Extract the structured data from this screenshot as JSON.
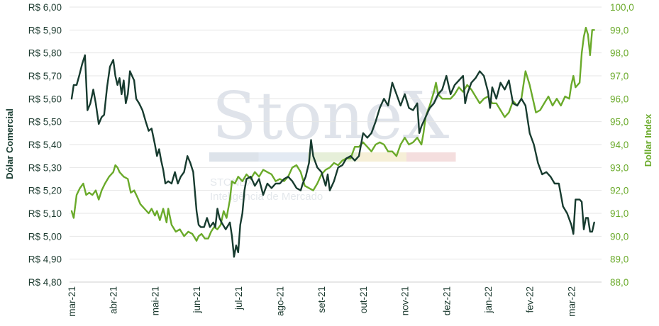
{
  "chart_data": {
    "type": "line",
    "watermark": {
      "brand": "StoneX",
      "line1": "STONEX",
      "line2": "Inteligência de Mercado",
      "band_colors": [
        "#dde3ea",
        "#e3eaf3",
        "#e6efd9",
        "#f6efd7",
        "#f4dede"
      ]
    },
    "colors": {
      "left": "#173b2f",
      "right": "#6aaa2a",
      "grid": "#e6e6e6"
    },
    "x_tick_labels": [
      "mar-21",
      "abr-21",
      "mai-21",
      "jun-21",
      "jul-21",
      "ago-21",
      "set-21",
      "out-21",
      "nov-21",
      "dez-21",
      "jan-22",
      "fev-22",
      "mar-22"
    ],
    "y_left": {
      "label": "Dólar Comercial",
      "range": [
        4.8,
        6.0
      ],
      "tick_labels": [
        "R$ 4,80",
        "R$ 4,90",
        "R$ 5,00",
        "R$ 5,10",
        "R$ 5,20",
        "R$ 5,30",
        "R$ 5,40",
        "R$ 5,50",
        "R$ 5,60",
        "R$ 5,70",
        "R$ 5,80",
        "R$ 5,90",
        "R$ 6,00"
      ]
    },
    "y_right": {
      "label": "Dollar Index",
      "range": [
        88.0,
        100.0
      ],
      "tick_labels": [
        "88,0",
        "89,0",
        "90,0",
        "91,0",
        "92,0",
        "93,0",
        "94,0",
        "95,0",
        "96,0",
        "97,0",
        "98,0",
        "99,0",
        "100,0"
      ]
    },
    "x_range": [
      0,
      12.4
    ],
    "series": [
      {
        "name": "Dólar Comercial",
        "axis": "left",
        "points": [
          [
            0.0,
            5.6
          ],
          [
            0.05,
            5.66
          ],
          [
            0.12,
            5.66
          ],
          [
            0.18,
            5.7
          ],
          [
            0.25,
            5.75
          ],
          [
            0.32,
            5.79
          ],
          [
            0.38,
            5.55
          ],
          [
            0.45,
            5.58
          ],
          [
            0.52,
            5.64
          ],
          [
            0.58,
            5.58
          ],
          [
            0.65,
            5.49
          ],
          [
            0.72,
            5.52
          ],
          [
            0.78,
            5.53
          ],
          [
            0.85,
            5.65
          ],
          [
            0.92,
            5.74
          ],
          [
            1.0,
            5.77
          ],
          [
            1.05,
            5.7
          ],
          [
            1.1,
            5.66
          ],
          [
            1.15,
            5.69
          ],
          [
            1.2,
            5.62
          ],
          [
            1.25,
            5.68
          ],
          [
            1.3,
            5.58
          ],
          [
            1.35,
            5.62
          ],
          [
            1.4,
            5.72
          ],
          [
            1.45,
            5.7
          ],
          [
            1.5,
            5.68
          ],
          [
            1.55,
            5.6
          ],
          [
            1.62,
            5.58
          ],
          [
            1.7,
            5.55
          ],
          [
            1.78,
            5.5
          ],
          [
            1.85,
            5.46
          ],
          [
            1.92,
            5.47
          ],
          [
            2.0,
            5.4
          ],
          [
            2.05,
            5.35
          ],
          [
            2.1,
            5.38
          ],
          [
            2.15,
            5.33
          ],
          [
            2.2,
            5.29
          ],
          [
            2.25,
            5.23
          ],
          [
            2.32,
            5.24
          ],
          [
            2.4,
            5.23
          ],
          [
            2.48,
            5.28
          ],
          [
            2.55,
            5.23
          ],
          [
            2.62,
            5.26
          ],
          [
            2.7,
            5.28
          ],
          [
            2.78,
            5.35
          ],
          [
            2.85,
            5.32
          ],
          [
            2.92,
            5.28
          ],
          [
            3.0,
            5.11
          ],
          [
            3.05,
            5.05
          ],
          [
            3.1,
            5.04
          ],
          [
            3.18,
            5.04
          ],
          [
            3.25,
            5.08
          ],
          [
            3.32,
            5.04
          ],
          [
            3.4,
            5.06
          ],
          [
            3.45,
            5.04
          ],
          [
            3.5,
            5.12
          ],
          [
            3.55,
            5.08
          ],
          [
            3.6,
            5.06
          ],
          [
            3.7,
            5.03
          ],
          [
            3.8,
            5.06
          ],
          [
            3.85,
            5.0
          ],
          [
            3.9,
            4.91
          ],
          [
            3.95,
            4.96
          ],
          [
            4.0,
            4.93
          ],
          [
            4.05,
            5.05
          ],
          [
            4.1,
            5.1
          ],
          [
            4.15,
            5.2
          ],
          [
            4.2,
            5.25
          ],
          [
            4.3,
            5.26
          ],
          [
            4.4,
            5.22
          ],
          [
            4.5,
            5.25
          ],
          [
            4.6,
            5.18
          ],
          [
            4.7,
            5.23
          ],
          [
            4.8,
            5.21
          ],
          [
            4.9,
            5.23
          ],
          [
            5.0,
            5.23
          ],
          [
            5.1,
            5.25
          ],
          [
            5.2,
            5.26
          ],
          [
            5.3,
            5.24
          ],
          [
            5.4,
            5.21
          ],
          [
            5.5,
            5.2
          ],
          [
            5.55,
            5.23
          ],
          [
            5.62,
            5.26
          ],
          [
            5.7,
            5.32
          ],
          [
            5.75,
            5.42
          ],
          [
            5.8,
            5.35
          ],
          [
            5.9,
            5.3
          ],
          [
            6.0,
            5.28
          ],
          [
            6.1,
            5.22
          ],
          [
            6.15,
            5.27
          ],
          [
            6.2,
            5.2
          ],
          [
            6.3,
            5.24
          ],
          [
            6.4,
            5.3
          ],
          [
            6.5,
            5.31
          ],
          [
            6.6,
            5.34
          ],
          [
            6.7,
            5.35
          ],
          [
            6.8,
            5.33
          ],
          [
            6.9,
            5.35
          ],
          [
            7.0,
            5.45
          ],
          [
            7.1,
            5.43
          ],
          [
            7.2,
            5.45
          ],
          [
            7.3,
            5.5
          ],
          [
            7.4,
            5.56
          ],
          [
            7.5,
            5.6
          ],
          [
            7.6,
            5.57
          ],
          [
            7.7,
            5.67
          ],
          [
            7.8,
            5.62
          ],
          [
            7.9,
            5.57
          ],
          [
            8.0,
            5.62
          ],
          [
            8.1,
            5.56
          ],
          [
            8.2,
            5.55
          ],
          [
            8.3,
            5.58
          ],
          [
            8.35,
            5.45
          ],
          [
            8.4,
            5.48
          ],
          [
            8.5,
            5.52
          ],
          [
            8.6,
            5.56
          ],
          [
            8.7,
            5.58
          ],
          [
            8.8,
            5.62
          ],
          [
            8.9,
            5.64
          ],
          [
            9.0,
            5.7
          ],
          [
            9.1,
            5.62
          ],
          [
            9.2,
            5.66
          ],
          [
            9.3,
            5.68
          ],
          [
            9.4,
            5.7
          ],
          [
            9.45,
            5.58
          ],
          [
            9.5,
            5.62
          ],
          [
            9.6,
            5.67
          ],
          [
            9.7,
            5.69
          ],
          [
            9.8,
            5.72
          ],
          [
            9.9,
            5.7
          ],
          [
            10.0,
            5.63
          ],
          [
            10.05,
            5.56
          ],
          [
            10.1,
            5.65
          ],
          [
            10.2,
            5.6
          ],
          [
            10.3,
            5.67
          ],
          [
            10.4,
            5.64
          ],
          [
            10.5,
            5.68
          ],
          [
            10.6,
            5.58
          ],
          [
            10.7,
            5.57
          ],
          [
            10.8,
            5.6
          ],
          [
            10.9,
            5.57
          ],
          [
            11.0,
            5.45
          ],
          [
            11.1,
            5.4
          ],
          [
            11.2,
            5.32
          ],
          [
            11.3,
            5.27
          ],
          [
            11.4,
            5.28
          ],
          [
            11.5,
            5.26
          ],
          [
            11.6,
            5.23
          ],
          [
            11.7,
            5.23
          ],
          [
            11.8,
            5.13
          ],
          [
            11.9,
            5.1
          ],
          [
            12.0,
            5.05
          ],
          [
            12.05,
            5.01
          ],
          [
            12.1,
            5.16
          ],
          [
            12.2,
            5.16
          ],
          [
            12.25,
            5.15
          ],
          [
            12.3,
            5.03
          ],
          [
            12.35,
            5.08
          ],
          [
            12.4,
            5.08
          ],
          [
            12.45,
            5.02
          ],
          [
            12.5,
            5.02
          ],
          [
            12.55,
            5.06
          ]
        ]
      },
      {
        "name": "Dollar Index",
        "axis": "right",
        "points": [
          [
            0.0,
            91.1
          ],
          [
            0.05,
            90.8
          ],
          [
            0.12,
            91.8
          ],
          [
            0.2,
            92.1
          ],
          [
            0.28,
            92.3
          ],
          [
            0.35,
            91.8
          ],
          [
            0.42,
            91.9
          ],
          [
            0.5,
            91.8
          ],
          [
            0.58,
            92.0
          ],
          [
            0.65,
            91.6
          ],
          [
            0.72,
            92.0
          ],
          [
            0.8,
            92.3
          ],
          [
            0.9,
            92.6
          ],
          [
            1.0,
            92.8
          ],
          [
            1.05,
            93.1
          ],
          [
            1.1,
            93.0
          ],
          [
            1.15,
            92.8
          ],
          [
            1.25,
            92.6
          ],
          [
            1.35,
            92.5
          ],
          [
            1.42,
            91.9
          ],
          [
            1.5,
            92.0
          ],
          [
            1.58,
            91.7
          ],
          [
            1.65,
            91.4
          ],
          [
            1.75,
            91.2
          ],
          [
            1.85,
            91.0
          ],
          [
            1.92,
            91.2
          ],
          [
            2.0,
            90.9
          ],
          [
            2.05,
            91.1
          ],
          [
            2.12,
            90.7
          ],
          [
            2.2,
            91.2
          ],
          [
            2.28,
            90.6
          ],
          [
            2.32,
            91.2
          ],
          [
            2.4,
            90.5
          ],
          [
            2.5,
            90.2
          ],
          [
            2.6,
            90.3
          ],
          [
            2.7,
            90.0
          ],
          [
            2.8,
            90.2
          ],
          [
            2.9,
            90.1
          ],
          [
            3.0,
            89.8
          ],
          [
            3.05,
            90.0
          ],
          [
            3.12,
            90.1
          ],
          [
            3.2,
            89.9
          ],
          [
            3.28,
            89.9
          ],
          [
            3.35,
            90.2
          ],
          [
            3.42,
            90.4
          ],
          [
            3.5,
            90.3
          ],
          [
            3.58,
            90.5
          ],
          [
            3.65,
            91.1
          ],
          [
            3.72,
            90.8
          ],
          [
            3.8,
            91.6
          ],
          [
            3.85,
            92.4
          ],
          [
            3.92,
            92.3
          ],
          [
            4.0,
            92.6
          ],
          [
            4.1,
            92.4
          ],
          [
            4.2,
            92.7
          ],
          [
            4.3,
            92.5
          ],
          [
            4.4,
            92.8
          ],
          [
            4.5,
            92.6
          ],
          [
            4.6,
            92.9
          ],
          [
            4.7,
            92.8
          ],
          [
            4.8,
            92.7
          ],
          [
            4.9,
            92.4
          ],
          [
            5.0,
            92.5
          ],
          [
            5.1,
            92.4
          ],
          [
            5.2,
            92.6
          ],
          [
            5.3,
            93.0
          ],
          [
            5.4,
            93.1
          ],
          [
            5.5,
            92.8
          ],
          [
            5.6,
            92.2
          ],
          [
            5.7,
            92.1
          ],
          [
            5.8,
            92.0
          ],
          [
            5.9,
            92.3
          ],
          [
            6.0,
            92.7
          ],
          [
            6.1,
            92.9
          ],
          [
            6.2,
            93.0
          ],
          [
            6.3,
            93.2
          ],
          [
            6.4,
            93.1
          ],
          [
            6.5,
            93.3
          ],
          [
            6.6,
            93.4
          ],
          [
            6.7,
            93.4
          ],
          [
            6.8,
            93.9
          ],
          [
            6.9,
            93.9
          ],
          [
            7.0,
            94.1
          ],
          [
            7.1,
            93.9
          ],
          [
            7.2,
            93.7
          ],
          [
            7.3,
            94.0
          ],
          [
            7.4,
            94.1
          ],
          [
            7.5,
            94.0
          ],
          [
            7.6,
            93.7
          ],
          [
            7.7,
            93.7
          ],
          [
            7.8,
            93.5
          ],
          [
            7.9,
            94.0
          ],
          [
            8.0,
            94.3
          ],
          [
            8.1,
            94.0
          ],
          [
            8.2,
            94.1
          ],
          [
            8.3,
            94.3
          ],
          [
            8.4,
            94.0
          ],
          [
            8.45,
            94.5
          ],
          [
            8.5,
            95.2
          ],
          [
            8.6,
            95.7
          ],
          [
            8.7,
            96.3
          ],
          [
            8.75,
            96.7
          ],
          [
            8.8,
            96.2
          ],
          [
            8.9,
            96.0
          ],
          [
            9.0,
            96.0
          ],
          [
            9.1,
            96.0
          ],
          [
            9.2,
            96.2
          ],
          [
            9.3,
            96.5
          ],
          [
            9.4,
            96.3
          ],
          [
            9.5,
            96.6
          ],
          [
            9.6,
            96.4
          ],
          [
            9.7,
            96.1
          ],
          [
            9.8,
            95.8
          ],
          [
            9.9,
            96.0
          ],
          [
            10.0,
            96.1
          ],
          [
            10.1,
            95.8
          ],
          [
            10.2,
            95.8
          ],
          [
            10.3,
            95.5
          ],
          [
            10.4,
            95.2
          ],
          [
            10.5,
            95.4
          ],
          [
            10.6,
            95.9
          ],
          [
            10.7,
            95.7
          ],
          [
            10.8,
            96.0
          ],
          [
            10.9,
            97.2
          ],
          [
            11.0,
            96.6
          ],
          [
            11.1,
            95.8
          ],
          [
            11.15,
            95.4
          ],
          [
            11.25,
            95.5
          ],
          [
            11.35,
            95.8
          ],
          [
            11.45,
            96.1
          ],
          [
            11.55,
            95.7
          ],
          [
            11.65,
            96.0
          ],
          [
            11.75,
            95.7
          ],
          [
            11.85,
            96.1
          ],
          [
            11.95,
            96.0
          ],
          [
            12.0,
            96.6
          ],
          [
            12.05,
            97.0
          ],
          [
            12.1,
            96.5
          ],
          [
            12.2,
            96.7
          ],
          [
            12.25,
            98.0
          ],
          [
            12.3,
            98.7
          ],
          [
            12.35,
            99.1
          ],
          [
            12.4,
            98.8
          ],
          [
            12.45,
            97.9
          ],
          [
            12.5,
            99.0
          ],
          [
            12.55,
            99.0
          ]
        ]
      }
    ]
  }
}
